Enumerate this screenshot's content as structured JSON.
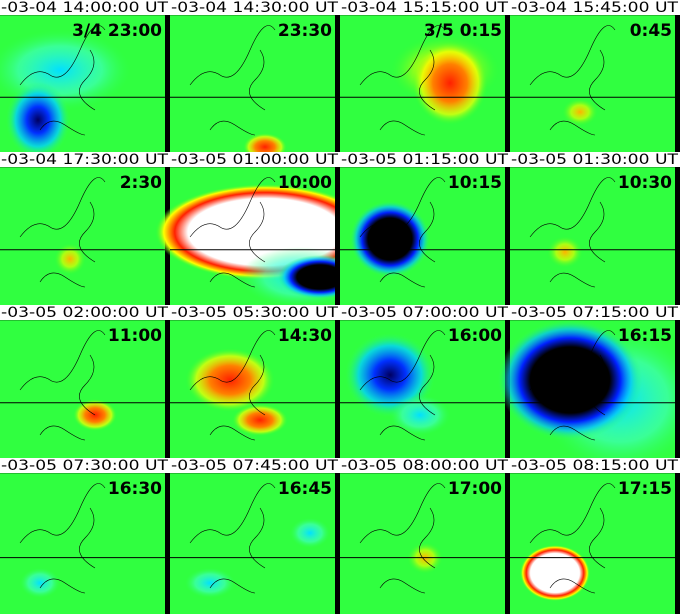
{
  "panels": [
    {
      "header": "-03-04  14:00:00 UT",
      "label": "3/4 23:00"
    },
    {
      "header": "-03-04  14:30:00 UT",
      "label": "23:30"
    },
    {
      "header": "-03-04  15:15:00 UT",
      "label": "3/5 0:15"
    },
    {
      "header": "-03-04  15:45:00 UT",
      "label": "0:45"
    },
    {
      "header": "-03-04  17:30:00 UT",
      "label": "2:30"
    },
    {
      "header": "-03-05  01:00:00 UT",
      "label": "10:00"
    },
    {
      "header": "-03-05  01:15:00 UT",
      "label": "10:15"
    },
    {
      "header": "-03-05  01:30:00 UT",
      "label": "10:30"
    },
    {
      "header": "-03-05  02:00:00 UT",
      "label": "11:00"
    },
    {
      "header": "-03-05  05:30:00 UT",
      "label": "14:30"
    },
    {
      "header": "-03-05  07:00:00 UT",
      "label": "16:00"
    },
    {
      "header": "-03-05  07:15:00 UT",
      "label": "16:15"
    },
    {
      "header": "-03-05  07:30:00 UT",
      "label": "16:30"
    },
    {
      "header": "-03-05  07:45:00 UT",
      "label": "16:45"
    },
    {
      "header": "-03-05  08:00:00 UT",
      "label": "17:00"
    },
    {
      "header": "-03-05  08:15:00 UT",
      "label": "17:15"
    }
  ]
}
